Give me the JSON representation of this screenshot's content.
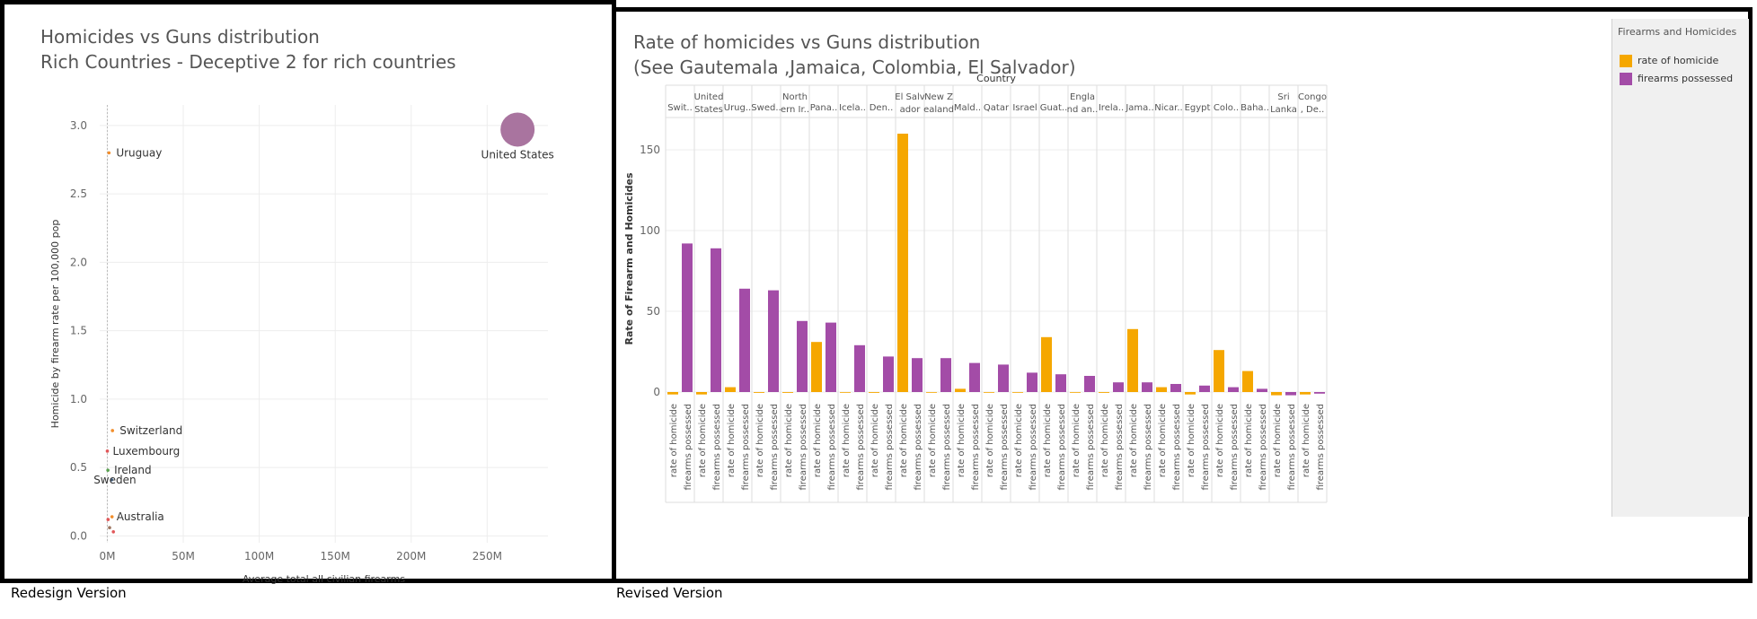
{
  "left_panel": {
    "title_line1": "Homicides vs Guns distribution",
    "title_line2": "Rich Countries - Deceptive 2 for rich countries",
    "caption": "Redesign Version"
  },
  "right_panel": {
    "title_line1": "Rate of homicides vs Guns distribution",
    "title_line2": "(See Gautemala ,Jamaica, Colombia, El Salvador)",
    "caption": "Revised Version"
  },
  "legend": {
    "title": "Firearms and Homicides",
    "items": [
      {
        "label": "rate of homicide",
        "color": "#f5a700"
      },
      {
        "label": "firearms possessed",
        "color": "#a34ca7"
      }
    ]
  },
  "chart_data": [
    {
      "type": "scatter",
      "xlabel": "Average total all civilian firearms",
      "ylabel": "Homicide by firearm rate per 100,000 pop",
      "xlim": [
        -5,
        290
      ],
      "ylim": [
        -0.05,
        3.15
      ],
      "x_unit": "M",
      "xticks": [
        0,
        50,
        100,
        150,
        200,
        250
      ],
      "xtick_labels": [
        "0M",
        "50M",
        "100M",
        "150M",
        "200M",
        "250M"
      ],
      "yticks": [
        0,
        0.5,
        1,
        1.5,
        2,
        2.5,
        3
      ],
      "ytick_labels": [
        "0.0",
        "0.5",
        "1.0",
        "1.5",
        "2.0",
        "2.5",
        "3.0"
      ],
      "grid": true,
      "points": [
        {
          "label": "United States",
          "x": 270,
          "y": 2.97,
          "color": "#a9749f"
        },
        {
          "label": "Uruguay",
          "x": 1.1,
          "y": 2.8,
          "color": "#f28e2b"
        },
        {
          "label": "Switzerland",
          "x": 3.4,
          "y": 0.77,
          "color": "#f28e2b"
        },
        {
          "label": "Luxembourg",
          "x": 0.02,
          "y": 0.62,
          "color": "#e15759"
        },
        {
          "label": "Ireland",
          "x": 0.4,
          "y": 0.48,
          "color": "#59a14f"
        },
        {
          "label": "Sweden",
          "x": 2.8,
          "y": 0.41,
          "color": "#4e79a7"
        },
        {
          "label": "Australia",
          "x": 3.1,
          "y": 0.14,
          "color": "#f28e2b"
        },
        {
          "label": "",
          "x": 0.5,
          "y": 0.12,
          "color": "#e15759"
        },
        {
          "label": "",
          "x": 4.0,
          "y": 0.03,
          "color": "#e15759"
        },
        {
          "label": "",
          "x": 1.5,
          "y": 0.06,
          "color": "#9c755f"
        }
      ]
    },
    {
      "type": "bar",
      "header": "Country",
      "ylabel": "Rate of Firearm and Homicides",
      "ylim": [
        -5,
        170
      ],
      "yticks": [
        0,
        50,
        100,
        150
      ],
      "series": [
        {
          "name": "rate of homicide",
          "color": "#f5a700"
        },
        {
          "name": "firearms possessed",
          "color": "#a34ca7"
        }
      ],
      "countries": [
        {
          "label": [
            "Swit.."
          ],
          "homicide": -1.5,
          "firearms": 92
        },
        {
          "label": [
            "United",
            "States"
          ],
          "homicide": -1.5,
          "firearms": 89
        },
        {
          "label": [
            "Urug.."
          ],
          "homicide": 3,
          "firearms": 64
        },
        {
          "label": [
            "Swed.."
          ],
          "homicide": -0.5,
          "firearms": 63
        },
        {
          "label": [
            "North",
            "ern Ir.."
          ],
          "homicide": -0.5,
          "firearms": 44
        },
        {
          "label": [
            "Pana.."
          ],
          "homicide": 31,
          "firearms": 43
        },
        {
          "label": [
            "Icela.."
          ],
          "homicide": 0,
          "firearms": 29
        },
        {
          "label": [
            "Den.."
          ],
          "homicide": -0.5,
          "firearms": 22
        },
        {
          "label": [
            "El Salv",
            "ador"
          ],
          "homicide": 160,
          "firearms": 21
        },
        {
          "label": [
            "New Z",
            "ealand"
          ],
          "homicide": 0,
          "firearms": 21
        },
        {
          "label": [
            "Mald.."
          ],
          "homicide": 2,
          "firearms": 18
        },
        {
          "label": [
            "Qatar"
          ],
          "homicide": 0,
          "firearms": 17
        },
        {
          "label": [
            "Israel"
          ],
          "homicide": 0,
          "firearms": 12
        },
        {
          "label": [
            "Guat.."
          ],
          "homicide": 34,
          "firearms": 11
        },
        {
          "label": [
            "Engla",
            "nd an.."
          ],
          "homicide": 0,
          "firearms": 10
        },
        {
          "label": [
            "Irela.."
          ],
          "homicide": -0.5,
          "firearms": 6
        },
        {
          "label": [
            "Jama.."
          ],
          "homicide": 39,
          "firearms": 6
        },
        {
          "label": [
            "Nicar.."
          ],
          "homicide": 3,
          "firearms": 5
        },
        {
          "label": [
            "Egypt"
          ],
          "homicide": -1.5,
          "firearms": 4
        },
        {
          "label": [
            "Colo.."
          ],
          "homicide": 26,
          "firearms": 3
        },
        {
          "label": [
            "Baha.."
          ],
          "homicide": 13,
          "firearms": 2
        },
        {
          "label": [
            "Sri",
            "Lanka"
          ],
          "homicide": -2,
          "firearms": -2
        },
        {
          "label": [
            "Congo",
            ", De.."
          ],
          "homicide": -1.5,
          "firearms": -1
        }
      ]
    }
  ]
}
